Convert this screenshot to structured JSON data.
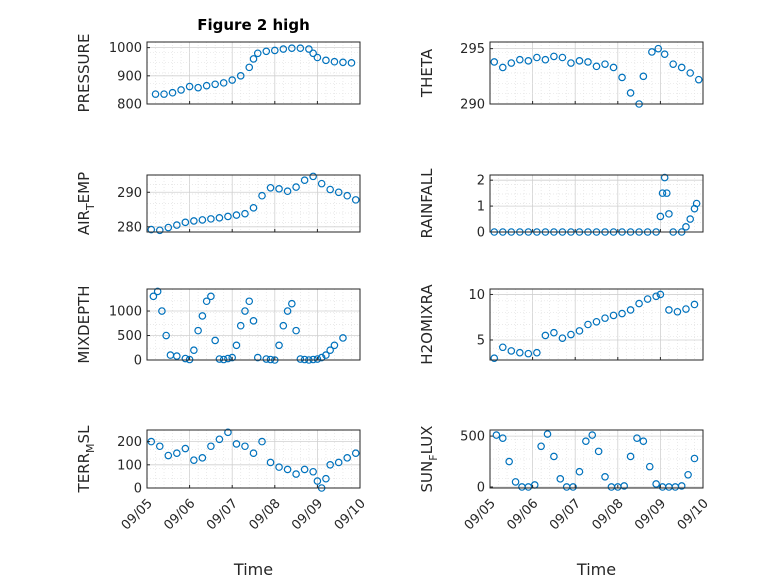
{
  "figure_title": "Figure 2 high",
  "x_axis_label": "Time",
  "x_tick_labels": [
    "09/05",
    "09/06",
    "09/07",
    "09/08",
    "09/09",
    "09/10"
  ],
  "marker_color": "#0072BD",
  "chart_data": [
    {
      "type": "scatter",
      "ylabel_main": "PRESSURE",
      "ylabel_sub": "",
      "ylabel_tail": "",
      "yticks": [
        800,
        900,
        1000
      ],
      "ylim": [
        800,
        1020
      ],
      "xlim": [
        0,
        5
      ],
      "x": [
        0.2,
        0.4,
        0.6,
        0.8,
        1.0,
        1.2,
        1.4,
        1.6,
        1.8,
        2.0,
        2.2,
        2.4,
        2.5,
        2.6,
        2.8,
        3.0,
        3.2,
        3.4,
        3.6,
        3.8,
        3.9,
        4.0,
        4.2,
        4.4,
        4.6,
        4.8
      ],
      "y": [
        835,
        835,
        840,
        850,
        862,
        858,
        865,
        870,
        875,
        885,
        900,
        930,
        960,
        980,
        987,
        990,
        995,
        998,
        998,
        995,
        980,
        965,
        955,
        950,
        948,
        946
      ]
    },
    {
      "type": "scatter",
      "ylabel_main": "THETA",
      "ylabel_sub": "",
      "ylabel_tail": "",
      "yticks": [
        290,
        295
      ],
      "ylim": [
        290,
        295.6
      ],
      "xlim": [
        0,
        5
      ],
      "x": [
        0.1,
        0.3,
        0.5,
        0.7,
        0.9,
        1.1,
        1.3,
        1.5,
        1.7,
        1.9,
        2.1,
        2.3,
        2.5,
        2.7,
        2.9,
        3.1,
        3.3,
        3.5,
        3.6,
        3.8,
        3.95,
        4.1,
        4.3,
        4.5,
        4.7,
        4.9
      ],
      "y": [
        293.8,
        293.3,
        293.7,
        294.0,
        293.9,
        294.2,
        294.0,
        294.3,
        294.2,
        293.7,
        293.9,
        293.8,
        293.4,
        293.6,
        293.3,
        292.4,
        291.0,
        290.0,
        292.5,
        294.7,
        295.0,
        294.5,
        293.6,
        293.3,
        292.8,
        292.2
      ]
    },
    {
      "type": "scatter",
      "ylabel_main": "AIR",
      "ylabel_sub": "T",
      "ylabel_tail": "EMP",
      "yticks": [
        280,
        290
      ],
      "ylim": [
        278.5,
        295
      ],
      "xlim": [
        0,
        5
      ],
      "x": [
        0.1,
        0.3,
        0.5,
        0.7,
        0.9,
        1.1,
        1.3,
        1.5,
        1.7,
        1.9,
        2.1,
        2.3,
        2.5,
        2.7,
        2.9,
        3.1,
        3.3,
        3.5,
        3.7,
        3.9,
        4.1,
        4.3,
        4.5,
        4.7,
        4.9
      ],
      "y": [
        279.2,
        279.0,
        279.8,
        280.5,
        281.3,
        281.7,
        282.0,
        282.3,
        282.6,
        283.0,
        283.4,
        283.8,
        285.5,
        289.0,
        291.3,
        291.0,
        290.3,
        291.5,
        293.5,
        294.6,
        292.5,
        290.8,
        290.0,
        289.0,
        287.8
      ]
    },
    {
      "type": "scatter",
      "ylabel_main": "RAINFALL",
      "ylabel_sub": "",
      "ylabel_tail": "",
      "yticks": [
        0,
        1,
        2
      ],
      "ylim": [
        0,
        2.2
      ],
      "xlim": [
        0,
        5
      ],
      "x": [
        0.1,
        0.3,
        0.5,
        0.7,
        0.9,
        1.1,
        1.3,
        1.5,
        1.7,
        1.9,
        2.1,
        2.3,
        2.5,
        2.7,
        2.9,
        3.1,
        3.3,
        3.5,
        3.7,
        3.9,
        4.0,
        4.05,
        4.1,
        4.15,
        4.2,
        4.3,
        4.5,
        4.6,
        4.7,
        4.8,
        4.85
      ],
      "y": [
        0,
        0,
        0,
        0,
        0,
        0,
        0,
        0,
        0,
        0,
        0,
        0,
        0,
        0,
        0,
        0,
        0,
        0,
        0,
        0,
        0.6,
        1.5,
        2.1,
        1.5,
        0.7,
        0,
        0,
        0.2,
        0.5,
        0.9,
        1.1
      ]
    },
    {
      "type": "scatter",
      "ylabel_main": "MIXDEPTH",
      "ylabel_sub": "",
      "ylabel_tail": "",
      "yticks": [
        0,
        500,
        1000
      ],
      "ylim": [
        0,
        1450
      ],
      "xlim": [
        0,
        5
      ],
      "x": [
        0.15,
        0.25,
        0.35,
        0.45,
        0.55,
        0.7,
        0.9,
        1.0,
        1.1,
        1.2,
        1.3,
        1.4,
        1.5,
        1.6,
        1.7,
        1.8,
        1.9,
        2.0,
        2.1,
        2.2,
        2.3,
        2.4,
        2.5,
        2.6,
        2.8,
        2.9,
        3.0,
        3.1,
        3.2,
        3.3,
        3.4,
        3.5,
        3.6,
        3.7,
        3.8,
        3.9,
        4.0,
        4.1,
        4.2,
        4.3,
        4.4,
        4.6
      ],
      "y": [
        1300,
        1400,
        1000,
        500,
        100,
        80,
        30,
        10,
        200,
        600,
        900,
        1200,
        1300,
        400,
        20,
        10,
        30,
        50,
        300,
        700,
        1000,
        1200,
        800,
        50,
        20,
        10,
        0,
        300,
        700,
        1000,
        1150,
        600,
        20,
        10,
        0,
        10,
        20,
        50,
        100,
        200,
        300,
        450
      ]
    },
    {
      "type": "scatter",
      "ylabel_main": "H2OMIXRA",
      "ylabel_sub": "",
      "ylabel_tail": "",
      "yticks": [
        5,
        10
      ],
      "ylim": [
        2.8,
        10.6
      ],
      "xlim": [
        0,
        5
      ],
      "x": [
        0.1,
        0.3,
        0.5,
        0.7,
        0.9,
        1.1,
        1.3,
        1.5,
        1.7,
        1.9,
        2.1,
        2.3,
        2.5,
        2.7,
        2.9,
        3.1,
        3.3,
        3.5,
        3.7,
        3.9,
        4.0,
        4.2,
        4.4,
        4.6,
        4.8
      ],
      "y": [
        3.0,
        4.2,
        3.8,
        3.6,
        3.5,
        3.6,
        5.5,
        5.8,
        5.2,
        5.6,
        6.0,
        6.7,
        7.0,
        7.4,
        7.7,
        7.9,
        8.3,
        9.0,
        9.5,
        9.8,
        10.0,
        8.3,
        8.1,
        8.4,
        8.9
      ]
    },
    {
      "type": "scatter",
      "ylabel_main": "TERR",
      "ylabel_sub": "M",
      "ylabel_tail": "SL",
      "yticks": [
        0,
        100,
        200
      ],
      "ylim": [
        0,
        250
      ],
      "xlim": [
        0,
        5
      ],
      "x": [
        0.1,
        0.3,
        0.5,
        0.7,
        0.9,
        1.1,
        1.3,
        1.5,
        1.7,
        1.9,
        2.1,
        2.3,
        2.5,
        2.7,
        2.9,
        3.1,
        3.3,
        3.5,
        3.7,
        3.9,
        4.0,
        4.1,
        4.2,
        4.3,
        4.5,
        4.7,
        4.9
      ],
      "y": [
        200,
        180,
        140,
        150,
        170,
        120,
        130,
        180,
        210,
        240,
        190,
        180,
        150,
        200,
        110,
        90,
        80,
        60,
        80,
        70,
        30,
        0,
        40,
        100,
        110,
        130,
        150
      ]
    },
    {
      "type": "scatter",
      "ylabel_main": "SUN",
      "ylabel_sub": "F",
      "ylabel_tail": "LUX",
      "yticks": [
        0,
        500
      ],
      "ylim": [
        -10,
        560
      ],
      "xlim": [
        0,
        5
      ],
      "x": [
        0.15,
        0.3,
        0.45,
        0.6,
        0.75,
        0.9,
        1.05,
        1.2,
        1.35,
        1.5,
        1.65,
        1.8,
        1.95,
        2.1,
        2.25,
        2.4,
        2.55,
        2.7,
        2.85,
        3.0,
        3.15,
        3.3,
        3.45,
        3.6,
        3.75,
        3.9,
        4.05,
        4.2,
        4.35,
        4.5,
        4.65,
        4.8
      ],
      "y": [
        510,
        480,
        250,
        50,
        0,
        0,
        20,
        400,
        520,
        300,
        80,
        0,
        0,
        150,
        450,
        510,
        350,
        100,
        0,
        0,
        10,
        300,
        480,
        450,
        200,
        30,
        0,
        0,
        0,
        10,
        120,
        280
      ]
    }
  ]
}
